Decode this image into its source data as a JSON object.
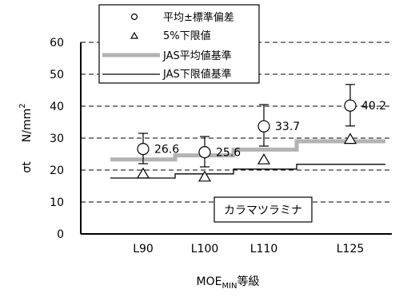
{
  "chart_data": {
    "type": "line",
    "categories": [
      "L90",
      "L100",
      "L110",
      "L125"
    ],
    "xlabel_main": "MOE",
    "xlabel_sub": "MIN",
    "xlabel_suffix": "等級",
    "ylabel_symbol": "σt",
    "ylabel_unit": "N/mm",
    "ylabel_unit_sup": "2",
    "ylim": [
      0,
      60
    ],
    "yticks": [
      0,
      10,
      20,
      30,
      40,
      50,
      60
    ],
    "grid": "dashed-horizontal",
    "legend_position": "top-left",
    "legend": [
      {
        "symbol": "circle",
        "label": "平均±標準偏差"
      },
      {
        "symbol": "triangle",
        "label": "5%下限値"
      },
      {
        "symbol": "thick-gray-line",
        "label": "JAS平均値基準"
      },
      {
        "symbol": "thin-black-line",
        "label": "JAS下限値基準"
      }
    ],
    "series": [
      {
        "name": "平均±標準偏差",
        "mean": [
          26.6,
          25.6,
          33.7,
          40.2
        ],
        "lower": [
          22.0,
          21.0,
          27.5,
          33.8
        ],
        "upper": [
          31.5,
          30.5,
          40.5,
          46.8
        ],
        "data_labels": [
          "26.6",
          "25.6",
          "33.7",
          "40.2"
        ]
      },
      {
        "name": "5%下限値",
        "values": [
          18.8,
          17.8,
          23.2,
          29.6
        ]
      },
      {
        "name": "JAS平均値基準",
        "steps": [
          23.3,
          24.6,
          26.4,
          29.0
        ]
      },
      {
        "name": "JAS下限値基準",
        "steps": [
          17.5,
          18.8,
          20.3,
          21.8
        ]
      }
    ],
    "annotation": "カラマツラミナ",
    "colors": {
      "jas_mean_line": "#b3b3b3",
      "jas_lower_line": "#000000",
      "grid": "#000000",
      "marker": "#000000"
    }
  }
}
